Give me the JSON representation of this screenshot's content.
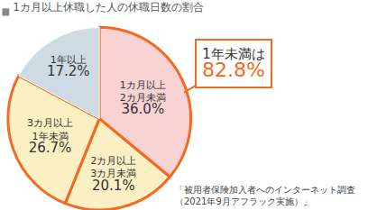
{
  "chart_data": {
    "type": "pie",
    "title": "1カ月以上休職した人の休職日数の割合",
    "categories": [
      "1カ月以上\n2カ月未満",
      "2カ月以上\n3カ月未満",
      "3カ月以上\n1年未満",
      "1年以上"
    ],
    "values": [
      36.0,
      20.1,
      26.7,
      17.2
    ],
    "value_labels": [
      "36.0%",
      "20.1%",
      "26.7%",
      "17.2%"
    ],
    "colors": [
      "#f9d3d3",
      "#fbf0c4",
      "#fbf0c4",
      "#cfdbe3"
    ],
    "data_labels": true,
    "annotations": [
      {
        "text": "1年未満は",
        "value": 82.8,
        "value_label": "82.8%"
      },
      {
        "text": "「被用者保険加入者へのインターネット調査\n（2021年9月アフラック実施）」"
      }
    ]
  }
}
